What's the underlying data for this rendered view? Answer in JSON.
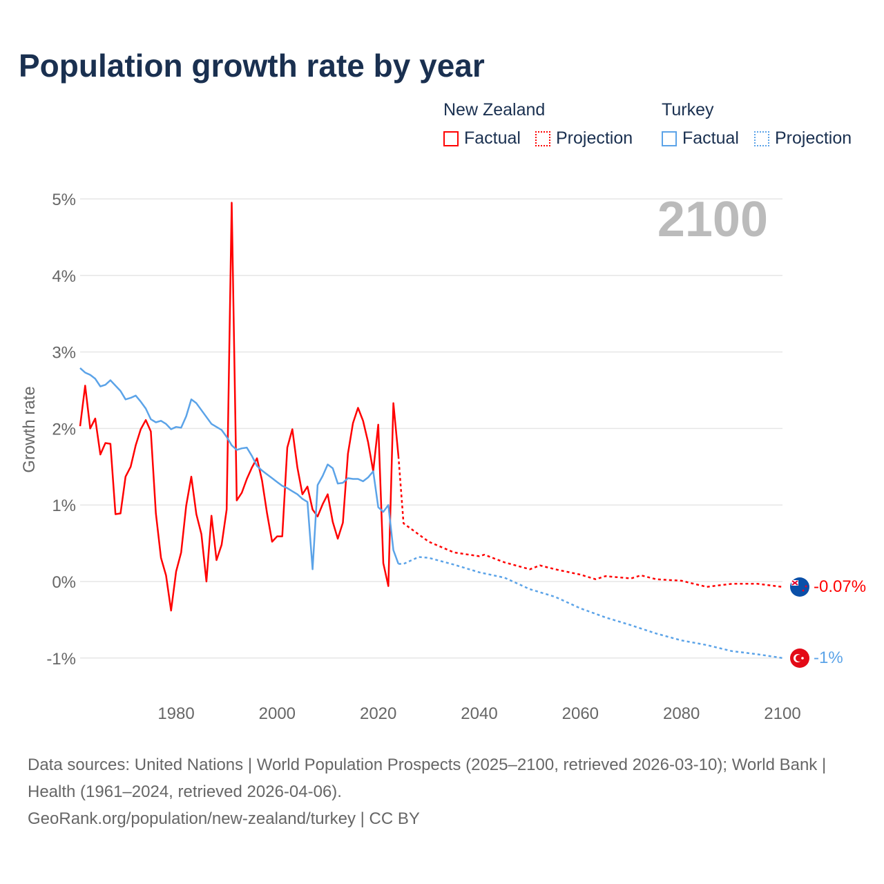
{
  "title": "Population growth rate by year",
  "legend": {
    "groups": [
      {
        "name": "New Zealand",
        "factual": "Factual",
        "projection": "Projection",
        "color": "#ff0000"
      },
      {
        "name": "Turkey",
        "factual": "Factual",
        "projection": "Projection",
        "color": "#5ba3e8"
      }
    ]
  },
  "year_display": "2100",
  "end_labels": {
    "nz": "-0.07%",
    "tr": "-1%"
  },
  "footer": {
    "line1": "Data sources: United Nations | World Population Prospects (2025–2100, retrieved 2026-03-10); World Bank | Health (1961–2024, retrieved 2026-04-06).",
    "line2": "GeoRank.org/population/new-zealand/turkey | CC BY"
  },
  "chart_data": {
    "type": "line",
    "title": "Population growth rate by year",
    "xlabel": "",
    "ylabel": "Growth rate",
    "xlim": [
      1961,
      2100
    ],
    "ylim": [
      -1.5,
      5
    ],
    "xticks": [
      "1980",
      "2000",
      "2020",
      "2040",
      "2060",
      "2080",
      "2100"
    ],
    "yticks": [
      "-1%",
      "0%",
      "1%",
      "2%",
      "3%",
      "4%",
      "5%"
    ],
    "grid": true,
    "series": [
      {
        "name": "New Zealand Factual",
        "color": "#ff0000",
        "dash": false,
        "start": 1961,
        "values": [
          2.03,
          2.56,
          2.0,
          2.13,
          1.66,
          1.81,
          1.8,
          0.88,
          0.89,
          1.37,
          1.5,
          1.78,
          1.99,
          2.11,
          1.96,
          0.89,
          0.31,
          0.08,
          -0.38,
          0.13,
          0.38,
          0.99,
          1.37,
          0.88,
          0.62,
          0.0,
          0.86,
          0.28,
          0.48,
          0.94,
          4.95,
          1.06,
          1.16,
          1.34,
          1.49,
          1.61,
          1.32,
          0.89,
          0.52,
          0.59,
          0.59,
          1.75,
          1.99,
          1.49,
          1.14,
          1.24,
          0.94,
          0.85,
          1.01,
          1.14,
          0.78,
          0.56,
          0.77,
          1.67,
          2.07,
          2.27,
          2.1,
          1.82,
          1.44,
          2.05,
          0.24,
          -0.06,
          2.33,
          1.64
        ]
      },
      {
        "name": "New Zealand Projection",
        "color": "#ff0000",
        "dash": true,
        "x": [
          2024,
          2025,
          2030,
          2035,
          2040,
          2041,
          2045,
          2050,
          2052,
          2055,
          2060,
          2063,
          2065,
          2070,
          2072,
          2075,
          2080,
          2085,
          2090,
          2095,
          2100
        ],
        "values": [
          1.64,
          0.76,
          0.52,
          0.38,
          0.33,
          0.35,
          0.25,
          0.16,
          0.21,
          0.16,
          0.09,
          0.03,
          0.07,
          0.04,
          0.08,
          0.03,
          0.01,
          -0.07,
          -0.03,
          -0.03,
          -0.07
        ]
      },
      {
        "name": "Turkey Factual",
        "color": "#5ba3e8",
        "dash": false,
        "start": 1961,
        "values": [
          2.79,
          2.73,
          2.7,
          2.65,
          2.55,
          2.57,
          2.63,
          2.56,
          2.49,
          2.38,
          2.4,
          2.43,
          2.35,
          2.26,
          2.12,
          2.08,
          2.1,
          2.06,
          1.99,
          2.02,
          2.01,
          2.16,
          2.38,
          2.33,
          2.24,
          2.15,
          2.06,
          2.02,
          1.98,
          1.89,
          1.78,
          1.72,
          1.74,
          1.75,
          1.64,
          1.51,
          1.45,
          1.4,
          1.35,
          1.3,
          1.25,
          1.22,
          1.18,
          1.14,
          1.08,
          1.04,
          0.16,
          1.26,
          1.38,
          1.53,
          1.48,
          1.28,
          1.29,
          1.35,
          1.34,
          1.34,
          1.31,
          1.36,
          1.44,
          0.97,
          0.91,
          1.0,
          0.41,
          0.23
        ]
      },
      {
        "name": "Turkey Projection",
        "color": "#5ba3e8",
        "dash": true,
        "x": [
          2024,
          2025,
          2028,
          2030,
          2035,
          2040,
          2045,
          2050,
          2055,
          2060,
          2065,
          2070,
          2075,
          2080,
          2085,
          2090,
          2095,
          2100
        ],
        "values": [
          0.23,
          0.23,
          0.32,
          0.31,
          0.22,
          0.12,
          0.05,
          -0.1,
          -0.2,
          -0.35,
          -0.47,
          -0.57,
          -0.68,
          -0.77,
          -0.83,
          -0.91,
          -0.95,
          -1.0
        ]
      }
    ]
  }
}
